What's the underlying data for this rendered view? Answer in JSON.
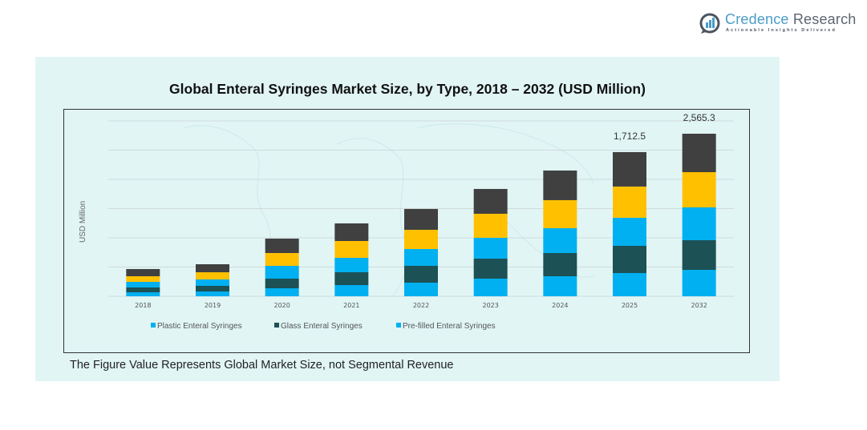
{
  "brand": {
    "name_part1": "Credence",
    "name_part2": " Research",
    "tagline": "Actionable Insights Delivered"
  },
  "footer_note": "The Figure Value Represents Global Market Size, not Segmental Revenue",
  "colors": {
    "plastic": "#00b0f0",
    "glass": "#1c5155",
    "prefilled": "#00b0f0",
    "segment4": "#ffc000",
    "segment5": "#404040",
    "panel_bg": "#e1f5f5",
    "grid": "#d0dada"
  },
  "chart_data": {
    "type": "bar",
    "stacked": true,
    "title": "Global Enteral Syringes Market Size, by Type, 2018 – 2032 (USD Million)",
    "xlabel": "",
    "ylabel": "USD Million",
    "categories": [
      "2018",
      "2019",
      "2020",
      "2021",
      "2022",
      "2023",
      "2024",
      "2025",
      "2032"
    ],
    "series": [
      {
        "name": "Plastic Enteral Syringes",
        "color_key": "plastic",
        "values": [
          47.6,
          57.1,
          95.1,
          133.2,
          161.7,
          209.3,
          237.9,
          275.9,
          417.0
        ]
      },
      {
        "name": "Glass Enteral Syringes",
        "color_key": "glass",
        "values": [
          57.1,
          66.6,
          114.2,
          152.2,
          199.8,
          237.9,
          275.9,
          323.5,
          467.6
        ]
      },
      {
        "name": "Pre-filled Enteral Syringes",
        "color_key": "prefilled",
        "values": [
          66.6,
          76.1,
          152.2,
          171.3,
          199.8,
          247.4,
          294.9,
          333.0,
          518.1
        ]
      },
      {
        "name": "",
        "color_key": "segment4",
        "values": [
          66.6,
          85.6,
          152.2,
          199.8,
          228.3,
          285.4,
          333.0,
          371.0,
          556.0
        ]
      },
      {
        "name": "",
        "color_key": "segment5",
        "values": [
          85.6,
          95.1,
          171.3,
          209.3,
          247.4,
          294.9,
          352.0,
          409.1,
          606.6
        ]
      }
    ],
    "data_labels": [
      {
        "category": "2025",
        "text": "1,712.5"
      },
      {
        "category": "2032",
        "text": "2,565.3"
      }
    ],
    "legend": {
      "position": "bottom-left",
      "entries": [
        {
          "label": "Plastic Enteral Syringes",
          "color_key": "plastic"
        },
        {
          "label": "Glass Enteral Syringes",
          "color_key": "glass"
        },
        {
          "label": "Pre-filled Enteral Syringes",
          "color_key": "prefilled"
        }
      ]
    },
    "ylim": [
      0,
      2083
    ],
    "gridlines": 6,
    "grid": true,
    "yticks_visible": false
  }
}
